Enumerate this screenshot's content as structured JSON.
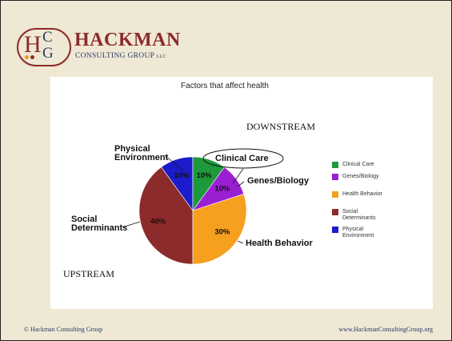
{
  "logo": {
    "letters": [
      "H",
      "C",
      "G"
    ],
    "name": "HACKMAN",
    "tagline": "CONSULTING GROUP",
    "suffix": "LLC"
  },
  "chart_data": {
    "type": "pie",
    "title": "Factors that affect health",
    "categories": [
      "Clinical Care",
      "Genes/Biology",
      "Health Behavior",
      "Social Determinants",
      "Physical Environment"
    ],
    "values": [
      10,
      10,
      30,
      40,
      10
    ],
    "value_labels": [
      "10%",
      "10%",
      "30%",
      "40%",
      "10%"
    ],
    "colors": [
      "#1e9a3c",
      "#9a1fd2",
      "#f5a01e",
      "#8c2b2b",
      "#1b1bcc"
    ],
    "legend": "right",
    "annotations": [
      "DOWNSTREAM",
      "UPSTREAM"
    ]
  },
  "footer": {
    "left": "© Hackman Consulting Group",
    "right": "www.HackmanConsultingGroup.org"
  }
}
